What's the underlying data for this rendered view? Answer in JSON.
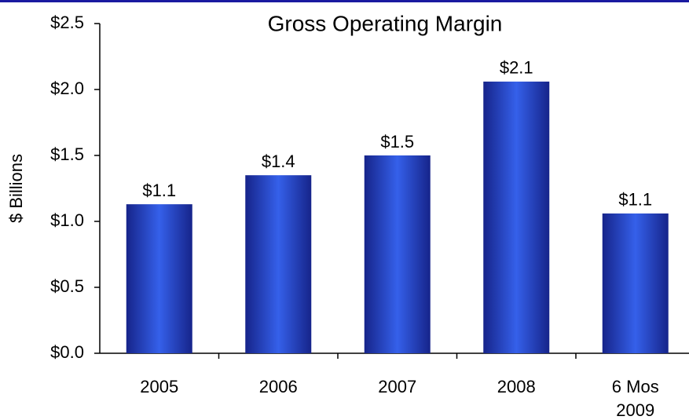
{
  "chart_data": {
    "type": "bar",
    "title": "Gross Operating Margin",
    "ylabel": "$ Billions",
    "categories": [
      "2005",
      "2006",
      "2007",
      "2008",
      "6 Mos 2009"
    ],
    "values": [
      1.13,
      1.35,
      1.5,
      2.06,
      1.06
    ],
    "value_labels": [
      "$1.1",
      "$1.4",
      "$1.5",
      "$2.1",
      "$1.1"
    ],
    "color": "#3560ea",
    "ylim": [
      0,
      2.5
    ],
    "yticks": [
      {
        "value": 0,
        "label": "$0.0"
      },
      {
        "value": 0.5,
        "label": "$0.5"
      },
      {
        "value": 1,
        "label": "$1.0"
      },
      {
        "value": 1.5,
        "label": "$1.5"
      },
      {
        "value": 2,
        "label": "$2.0"
      },
      {
        "value": 2.5,
        "label": "$2.5"
      }
    ],
    "grid": false
  }
}
